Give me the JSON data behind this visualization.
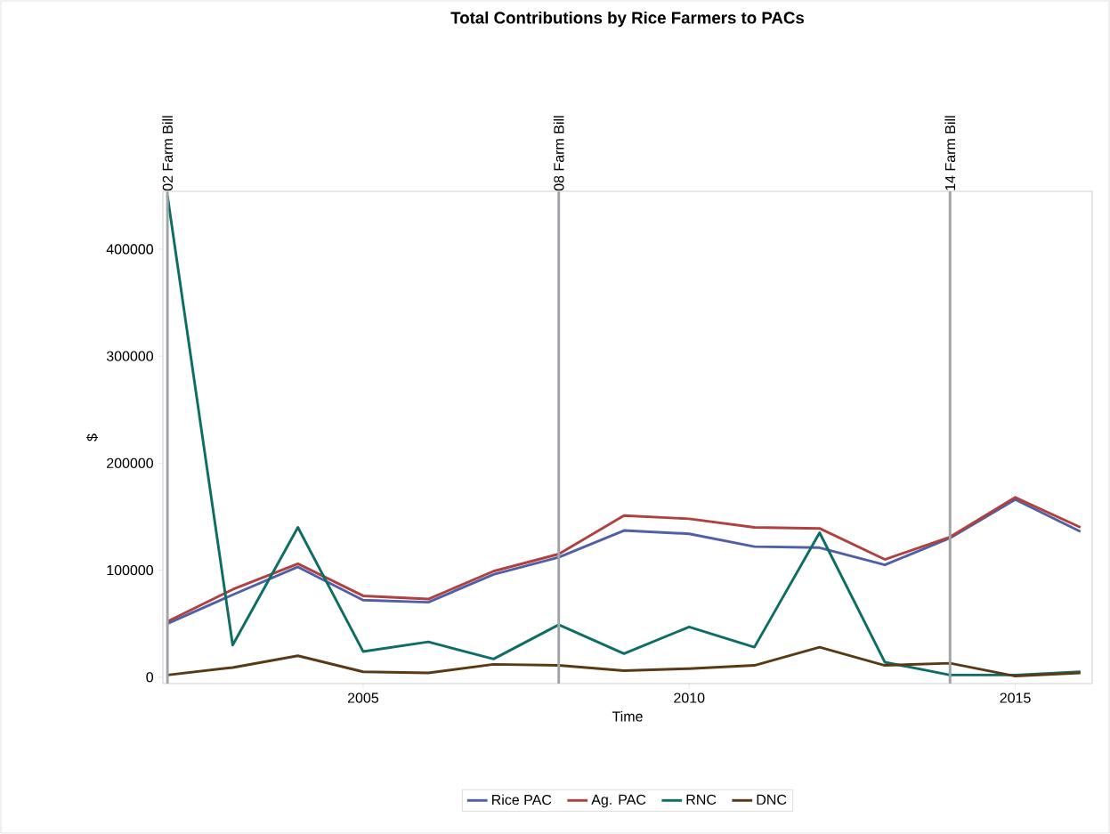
{
  "chart_data": {
    "type": "line",
    "title": "Total Contributions by Rice Farmers to PACs",
    "xlabel": "Time",
    "ylabel": "$",
    "x": [
      2002,
      2003,
      2004,
      2005,
      2006,
      2007,
      2008,
      2009,
      2010,
      2011,
      2012,
      2013,
      2014,
      2015,
      2016
    ],
    "series": [
      {
        "name": "Rice PAC",
        "color": "#4f5fa8",
        "values": [
          50000,
          77000,
          103000,
          72000,
          70000,
          96000,
          112000,
          137000,
          134000,
          122000,
          121000,
          105000,
          130000,
          166000,
          136000
        ]
      },
      {
        "name": "Ag. PAC",
        "color": "#b0413e",
        "values": [
          52000,
          82000,
          106000,
          76000,
          73000,
          99000,
          115000,
          151000,
          148000,
          140000,
          139000,
          110000,
          131000,
          168000,
          140000
        ]
      },
      {
        "name": "RNC",
        "color": "#0f6e64",
        "values": [
          450000,
          30000,
          140000,
          24000,
          33000,
          17000,
          49000,
          22000,
          47000,
          28000,
          135000,
          14000,
          2000,
          2000,
          5000
        ]
      },
      {
        "name": "DNC",
        "color": "#5a3a14",
        "values": [
          2000,
          9000,
          20000,
          5000,
          4000,
          12000,
          11000,
          6000,
          8000,
          11000,
          28000,
          11000,
          13000,
          1000,
          4000
        ]
      }
    ],
    "xlim": [
      2001.93,
      2016.18
    ],
    "ylim": [
      -6000,
      454000
    ],
    "xticks": [
      2005,
      2010,
      2015
    ],
    "yticks": [
      0,
      100000,
      200000,
      300000,
      400000
    ],
    "ref_lines": [
      {
        "axis": "x",
        "value": 2002,
        "label": "02 Farm Bill",
        "color": "#a0a4a8"
      },
      {
        "axis": "x",
        "value": 2008,
        "label": "08 Farm Bill",
        "color": "#a0a4a8"
      },
      {
        "axis": "x",
        "value": 2014,
        "label": "14 Farm Bill",
        "color": "#a0a4a8"
      }
    ],
    "grid": false,
    "legend": "bottom",
    "marker": "none",
    "line_style": "solid"
  }
}
